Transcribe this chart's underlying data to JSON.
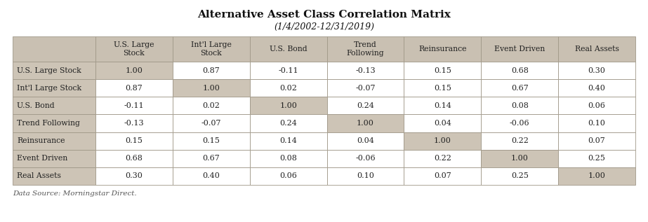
{
  "title": "Alternative Asset Class Correlation Matrix",
  "subtitle": "(1/4/2002-12/31/2019)",
  "footnote": "Data Source: Morningstar Direct.",
  "col_headers": [
    "U.S. Large\nStock",
    "Int'l Large\nStock",
    "U.S. Bond",
    "Trend\nFollowing",
    "Reinsurance",
    "Event Driven",
    "Real Assets"
  ],
  "row_headers": [
    "U.S. Large Stock",
    "Int'l Large Stock",
    "U.S. Bond",
    "Trend Following",
    "Reinsurance",
    "Event Driven",
    "Real Assets"
  ],
  "data": [
    [
      1.0,
      0.87,
      -0.11,
      -0.13,
      0.15,
      0.68,
      0.3
    ],
    [
      0.87,
      1.0,
      0.02,
      -0.07,
      0.15,
      0.67,
      0.4
    ],
    [
      -0.11,
      0.02,
      1.0,
      0.24,
      0.14,
      0.08,
      0.06
    ],
    [
      -0.13,
      -0.07,
      0.24,
      1.0,
      0.04,
      -0.06,
      0.1
    ],
    [
      0.15,
      0.15,
      0.14,
      0.04,
      1.0,
      0.22,
      0.07
    ],
    [
      0.68,
      0.67,
      0.08,
      -0.06,
      0.22,
      1.0,
      0.25
    ],
    [
      0.3,
      0.4,
      0.06,
      0.1,
      0.07,
      0.25,
      1.0
    ]
  ],
  "header_bg": "#c9c0b2",
  "row_label_bg": "#cdc4b6",
  "cell_bg_normal": "#ffffff",
  "cell_bg_diag": "#cdc4b6",
  "border_color": "#a09888",
  "text_color": "#222222",
  "title_color": "#111111",
  "footnote_color": "#555555",
  "fig_bg": "#ffffff",
  "outer_border_color": "#a09888"
}
